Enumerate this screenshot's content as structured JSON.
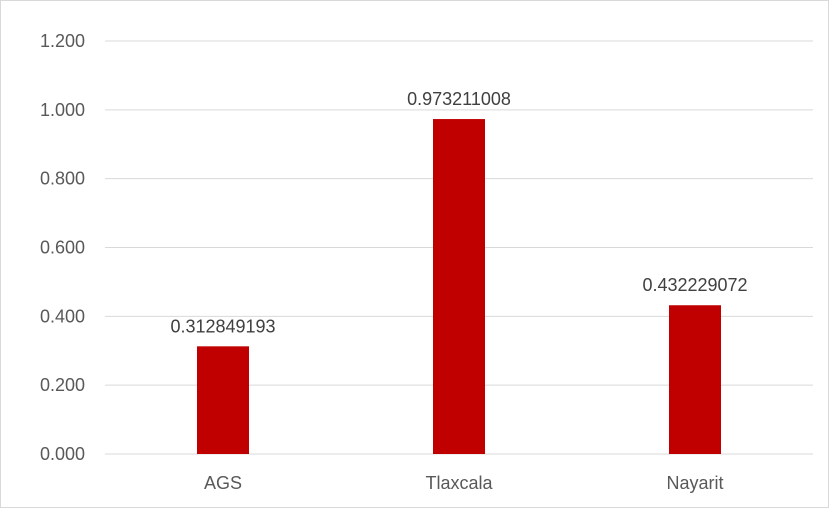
{
  "chart_data": {
    "type": "bar",
    "categories": [
      "AGS",
      "Tlaxcala",
      "Nayarit"
    ],
    "values": [
      0.312849193,
      0.973211008,
      0.432229072
    ],
    "data_labels": [
      "0.312849193",
      "0.973211008",
      "0.432229072"
    ],
    "title": "",
    "xlabel": "",
    "ylabel": "",
    "ylim": [
      0,
      1.2
    ],
    "y_ticks": [
      0,
      0.2,
      0.4,
      0.6,
      0.8,
      1.0,
      1.2
    ],
    "y_tick_labels": [
      "0.000",
      "0.200",
      "0.400",
      "0.600",
      "0.800",
      "1.000",
      "1.200"
    ],
    "grid": true,
    "legend": "none",
    "colors": {
      "bar": "#c00000",
      "gridline": "#d9d9d9",
      "axis_text": "#595959",
      "label_text": "#404040",
      "border": "#d9d9d9"
    }
  }
}
